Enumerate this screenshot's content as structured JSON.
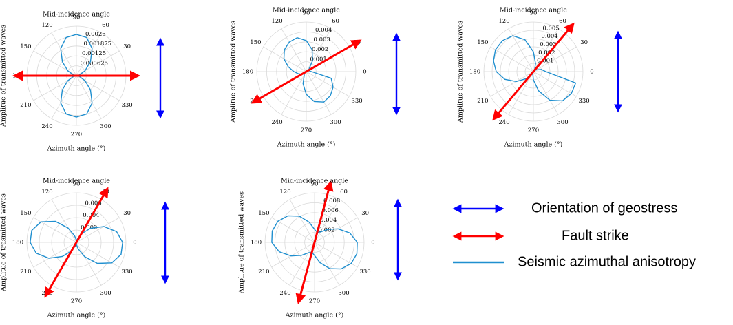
{
  "chart_data": [
    {
      "type": "polar",
      "title": "Mid-incidence angle",
      "xlabel": "Azimuth angle (°)",
      "ylabel": "Amplitue of transmitted waves",
      "angle_ticks": [
        "0",
        "30",
        "60",
        "90",
        "120",
        "150",
        "180",
        "210",
        "240",
        "270",
        "300",
        "330"
      ],
      "r_ticks": [
        "0.000625",
        "0.00125",
        "0.001875",
        "0.0025"
      ],
      "rmax": 0.003,
      "series": [
        {
          "theta": [
            0,
            15,
            30,
            45,
            60,
            75,
            90,
            105,
            120,
            135,
            150,
            165,
            180,
            195,
            210,
            225,
            240,
            255,
            270,
            285,
            300,
            315,
            330,
            345
          ],
          "r": [
            0.0001,
            0.0002,
            0.0006,
            0.0012,
            0.0019,
            0.0024,
            0.0025,
            0.0024,
            0.0019,
            0.0012,
            0.0006,
            0.0002,
            0.0001,
            0.0002,
            0.0006,
            0.0012,
            0.0019,
            0.0024,
            0.0025,
            0.0024,
            0.0019,
            0.0012,
            0.0006,
            0.0002
          ]
        }
      ],
      "fault_strike_deg": 0
    },
    {
      "type": "polar",
      "title": "Mid-incidence angle",
      "xlabel": "Azimuth angle (°)",
      "ylabel": "Amplitue of transmitted waves",
      "angle_ticks": [
        "0",
        "30",
        "60",
        "90",
        "120",
        "150",
        "180",
        "210",
        "240",
        "270",
        "300",
        "330"
      ],
      "r_ticks": [
        "0.001",
        "0.002",
        "0.003",
        "0.004"
      ],
      "rmax": 0.0048,
      "series": [
        {
          "theta": [
            0,
            15,
            30,
            45,
            60,
            75,
            90,
            105,
            120,
            135,
            150,
            165,
            180,
            195,
            210,
            225,
            240,
            255,
            270,
            285,
            300,
            315,
            330,
            345
          ],
          "r": [
            0.0005,
            0.0003,
            0.0002,
            0.0004,
            0.0012,
            0.0022,
            0.003,
            0.0034,
            0.0033,
            0.003,
            0.0025,
            0.0018,
            0.0012,
            0.0008,
            0.0005,
            0.0003,
            0.0004,
            0.0012,
            0.0022,
            0.003,
            0.0034,
            0.0033,
            0.003,
            0.0025
          ]
        }
      ],
      "fault_strike_deg": 30
    },
    {
      "type": "polar",
      "title": "Mid-incidence angle",
      "xlabel": "Azimuth angle (°)",
      "ylabel": "Amplitue of transmitted waves",
      "angle_ticks": [
        "0",
        "30",
        "60",
        "90",
        "120",
        "150",
        "180",
        "210",
        "240",
        "270",
        "300",
        "330"
      ],
      "r_ticks": [
        "0.001",
        "0.002",
        "0.003",
        "0.004",
        "0.005"
      ],
      "rmax": 0.006,
      "series": [
        {
          "theta": [
            0,
            15,
            30,
            45,
            60,
            75,
            90,
            105,
            120,
            135,
            150,
            165,
            180,
            195,
            210,
            225,
            240,
            255,
            270,
            285,
            300,
            315,
            330,
            345
          ],
          "r": [
            0.0015,
            0.001,
            0.0004,
            0.0002,
            0.0003,
            0.001,
            0.0024,
            0.004,
            0.005,
            0.0053,
            0.0053,
            0.005,
            0.0045,
            0.0036,
            0.0024,
            0.0012,
            0.0004,
            0.0003,
            0.001,
            0.0024,
            0.004,
            0.005,
            0.0053,
            0.0053
          ]
        }
      ],
      "fault_strike_deg": 50
    },
    {
      "type": "polar",
      "title": "Mid-incidence angle",
      "xlabel": "Azimuth angle (°)",
      "ylabel": "Amplitue of trasmitted waves",
      "angle_ticks": [
        "0",
        "30",
        "60",
        "90",
        "120",
        "150",
        "180",
        "210",
        "240",
        "270",
        "300",
        "330"
      ],
      "r_ticks": [
        "0.002",
        "0.004",
        "0.006"
      ],
      "rmax": 0.0075,
      "series": [
        {
          "theta": [
            0,
            15,
            30,
            45,
            60,
            75,
            90,
            105,
            120,
            135,
            150,
            165,
            180,
            195,
            210,
            225,
            240,
            255,
            270,
            285,
            300,
            315,
            330,
            345
          ],
          "r": [
            0.007,
            0.0063,
            0.0048,
            0.003,
            0.0015,
            0.0005,
            0.0003,
            0.001,
            0.0025,
            0.0045,
            0.0062,
            0.007,
            0.007,
            0.0063,
            0.0048,
            0.003,
            0.0015,
            0.0005,
            0.0003,
            0.001,
            0.0025,
            0.0045,
            0.0062,
            0.007
          ]
        }
      ],
      "fault_strike_deg": 60
    },
    {
      "type": "polar",
      "title": "Mid-incidence angle",
      "xlabel": "Azimuth angle (°)",
      "ylabel": "Amplitue of transmitted waves",
      "angle_ticks": [
        "0",
        "30",
        "60",
        "90",
        "120",
        "150",
        "180",
        "210",
        "240",
        "270",
        "300",
        "330"
      ],
      "r_ticks": [
        "0.002",
        "0.004",
        "0.006",
        "0.008"
      ],
      "rmax": 0.0095,
      "series": [
        {
          "theta": [
            0,
            15,
            30,
            45,
            60,
            75,
            90,
            105,
            120,
            135,
            150,
            165,
            180,
            195,
            210,
            225,
            240,
            255,
            270,
            285,
            300,
            315,
            330,
            345
          ],
          "r": [
            0.0082,
            0.007,
            0.0052,
            0.0035,
            0.0023,
            0.002,
            0.0025,
            0.004,
            0.0058,
            0.0072,
            0.0081,
            0.0084,
            0.0082,
            0.007,
            0.0052,
            0.0035,
            0.0023,
            0.002,
            0.0025,
            0.004,
            0.0058,
            0.0072,
            0.0081,
            0.0084
          ]
        }
      ],
      "fault_strike_deg": 75
    }
  ],
  "legend": [
    {
      "label": "Orientation of geostress",
      "kind": "double-arrow",
      "color": "#0000ff"
    },
    {
      "label": "Fault strike",
      "kind": "double-arrow",
      "color": "#ff0000"
    },
    {
      "label": "Seismic azimuthal anisotropy",
      "kind": "line",
      "color": "#1f8fcf"
    }
  ],
  "colors": {
    "anisotropy": "#1f8fcf",
    "fault": "#ff0000",
    "geostress": "#0000ff",
    "grid": "#d9d9d9"
  }
}
